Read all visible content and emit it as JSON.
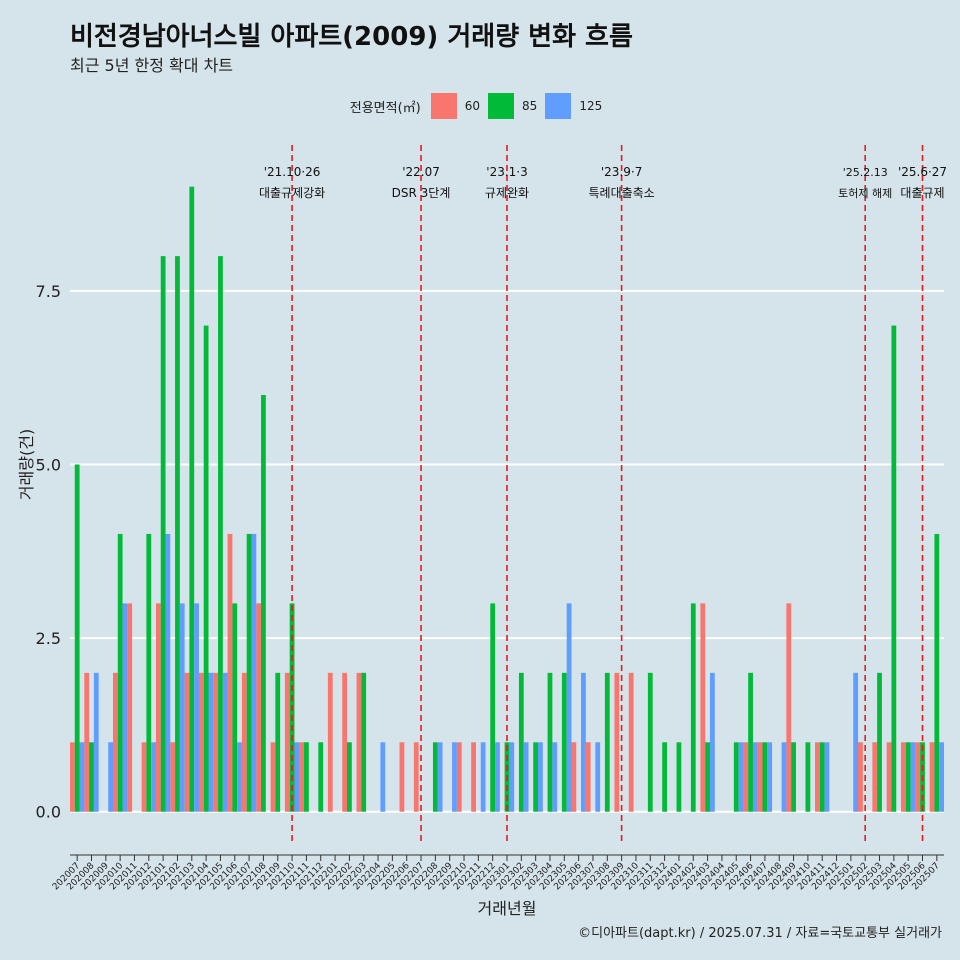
{
  "title": "비전경남아너스빌 아파트(2009) 거래량 변화 흐름",
  "subtitle": "최근 5년 한정 확대 차트",
  "caption": "©디아파트(dapt.kr) / 2025.07.31 / 자료=국토교통부 실거래가",
  "colors": {
    "background": "#d5e3ea",
    "s60": "#f8766d",
    "s85": "#00ba38",
    "s125": "#619cff",
    "event_line": "#e41a1c",
    "grid": "#ffffff"
  },
  "chart_data": {
    "type": "bar",
    "xlabel": "거래년월",
    "ylabel": "거래량(건)",
    "ylim": [
      -0.45,
      9.6
    ],
    "yticks": [
      0,
      2.5,
      5,
      7.5
    ],
    "ytick_labels": [
      "0.0",
      "2.5",
      "5.0",
      "7.5"
    ],
    "grid": true,
    "legend": {
      "title": "전용면적(㎡)",
      "position": "top"
    },
    "categories": [
      "202007",
      "202008",
      "202009",
      "202010",
      "202011",
      "202012",
      "202101",
      "202102",
      "202103",
      "202104",
      "202105",
      "202106",
      "202107",
      "202108",
      "202109",
      "202110",
      "202111",
      "202112",
      "202201",
      "202202",
      "202203",
      "202204",
      "202205",
      "202206",
      "202207",
      "202208",
      "202209",
      "202210",
      "202211",
      "202212",
      "202301",
      "202302",
      "202303",
      "202304",
      "202305",
      "202306",
      "202307",
      "202308",
      "202309",
      "202310",
      "202311",
      "202312",
      "202401",
      "202402",
      "202403",
      "202404",
      "202405",
      "202406",
      "202407",
      "202408",
      "202409",
      "202410",
      "202411",
      "202412",
      "202501",
      "202502",
      "202503",
      "202504",
      "202505",
      "202506",
      "202507"
    ],
    "series": [
      {
        "name": "60",
        "values": [
          1,
          2,
          0,
          2,
          3,
          1,
          3,
          1,
          2,
          2,
          2,
          4,
          2,
          3,
          1,
          2,
          1,
          0,
          2,
          2,
          2,
          0,
          0,
          1,
          1,
          0,
          0,
          1,
          1,
          0,
          0,
          0,
          0,
          0,
          0,
          1,
          1,
          0,
          2,
          2,
          0,
          0,
          0,
          0,
          3,
          0,
          0,
          1,
          1,
          0,
          3,
          0,
          1,
          0,
          0,
          1,
          1,
          1,
          1,
          1,
          1
        ]
      },
      {
        "name": "85",
        "values": [
          5,
          1,
          0,
          4,
          0,
          4,
          8,
          8,
          9,
          7,
          8,
          3,
          4,
          6,
          2,
          3,
          1,
          1,
          0,
          1,
          2,
          0,
          0,
          0,
          0,
          1,
          0,
          0,
          0,
          3,
          1,
          2,
          1,
          2,
          2,
          0,
          0,
          2,
          0,
          0,
          2,
          1,
          1,
          3,
          1,
          0,
          1,
          2,
          1,
          0,
          1,
          1,
          1,
          0,
          0,
          0,
          2,
          7,
          1,
          1,
          4
        ]
      },
      {
        "name": "125",
        "values": [
          1,
          2,
          1,
          3,
          0,
          1,
          4,
          3,
          3,
          2,
          2,
          1,
          4,
          0,
          0,
          1,
          0,
          0,
          0,
          0,
          0,
          1,
          0,
          0,
          0,
          1,
          1,
          0,
          1,
          1,
          1,
          1,
          1,
          1,
          3,
          2,
          1,
          0,
          0,
          0,
          0,
          0,
          0,
          0,
          2,
          0,
          1,
          1,
          1,
          1,
          0,
          0,
          1,
          0,
          2,
          0,
          0,
          0,
          1,
          0,
          1
        ]
      }
    ],
    "events": [
      {
        "category": "202110",
        "date": "'21.10·26",
        "label": "대출규제강화"
      },
      {
        "category": "202207",
        "date": "'22.07",
        "label": "DSR 3단계"
      },
      {
        "category": "202301",
        "date": "'23.1·3",
        "label": "규제완화"
      },
      {
        "category": "202309",
        "date": "'23.9·7",
        "label": "특례대출축소"
      },
      {
        "category": "202502",
        "date": "'25.2.13",
        "label": "토허제 해제"
      },
      {
        "category": "202506",
        "date": "'25.6·27",
        "label": "대출규제"
      }
    ]
  }
}
